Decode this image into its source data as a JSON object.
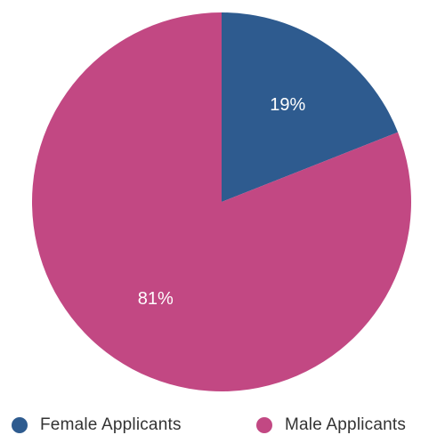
{
  "chart_data": {
    "type": "pie",
    "title": "",
    "slices": [
      {
        "name": "Female Applicants",
        "value": 19,
        "label": "19%",
        "color": "#2e5b8f"
      },
      {
        "name": "Male Applicants",
        "value": 81,
        "label": "81%",
        "color": "#c24883"
      }
    ],
    "start_angle_deg": 0,
    "direction": "clockwise",
    "legend_position": "bottom",
    "label_color": "#ffffff"
  },
  "legend": {
    "items": [
      {
        "label": "Female Applicants",
        "color": "#2e5b8f"
      },
      {
        "label": "Male Applicants",
        "color": "#c24883"
      }
    ]
  }
}
